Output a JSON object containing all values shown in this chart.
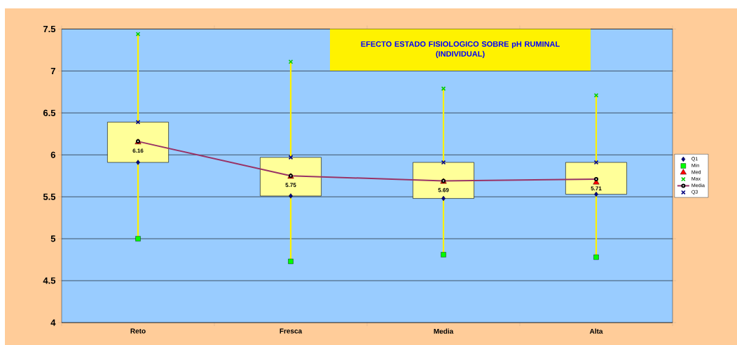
{
  "chart_data": {
    "type": "box",
    "title": "EFECTO ESTADO FISIOLOGICO SOBRE pH RUMINAL",
    "subtitle": "(INDIVIDUAL)",
    "categories": [
      "Reto",
      "Fresca",
      "Media",
      "Alta"
    ],
    "boxes": [
      {
        "low": 5.0,
        "q1": 5.91,
        "q3": 6.39,
        "high": 7.44
      },
      {
        "low": 4.73,
        "q1": 5.51,
        "q3": 5.97,
        "high": 7.11
      },
      {
        "low": 4.81,
        "q1": 5.48,
        "q3": 5.91,
        "high": 6.79
      },
      {
        "low": 4.78,
        "q1": 5.53,
        "q3": 5.91,
        "high": 6.71
      }
    ],
    "series": [
      {
        "name": "Q1",
        "type": "scatter",
        "marker": "diamond",
        "color": "#000080",
        "values": [
          5.91,
          5.51,
          5.48,
          5.53
        ]
      },
      {
        "name": "Min",
        "type": "scatter",
        "marker": "square",
        "color": "#00ff00",
        "values": [
          5.0,
          4.73,
          4.81,
          4.78
        ]
      },
      {
        "name": "Med",
        "type": "scatter",
        "marker": "triangle",
        "color": "#ff0000",
        "values": [
          6.15,
          5.74,
          5.68,
          5.67
        ]
      },
      {
        "name": "Max",
        "type": "scatter",
        "marker": "cross",
        "color": "#00cc00",
        "values": [
          7.44,
          7.11,
          6.79,
          6.71
        ]
      },
      {
        "name": "Media",
        "type": "line",
        "marker": "circle",
        "color": "#993366",
        "values": [
          6.16,
          5.75,
          5.69,
          5.71
        ],
        "value_labels": [
          "6.16",
          "5.75",
          "5.69",
          "5.71"
        ]
      },
      {
        "name": "Q3",
        "type": "scatter",
        "marker": "cross",
        "color": "#000080",
        "values": [
          6.39,
          5.97,
          5.91,
          5.91
        ]
      }
    ],
    "ylim": [
      4,
      7.5
    ],
    "yticks": [
      4,
      4.5,
      5,
      5.5,
      6,
      6.5,
      7,
      7.5
    ],
    "grid": "y",
    "legend": "right"
  }
}
